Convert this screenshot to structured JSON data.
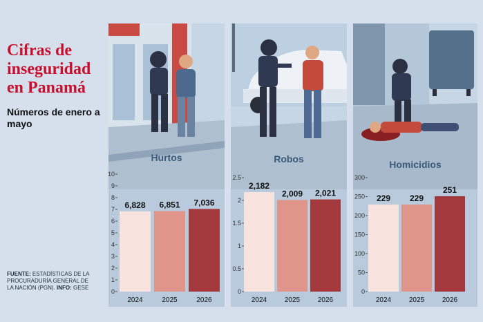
{
  "title": "Cifras de inseguridad en Panamá",
  "subtitle": "Números de enero a mayo",
  "source": {
    "label1": "FUENTE:",
    "text1": "ESTADÍSTICAS DE LA PROCURADURÍA GENERAL DE LA NACIÓN (PGN).",
    "label2": "INFO:",
    "text2": "GESE"
  },
  "colors": {
    "2024": "#f8e3de",
    "2025": "#e0958a",
    "2026": "#a3393c"
  },
  "chart_data": [
    {
      "type": "bar",
      "category": "Hurtos",
      "categories": [
        "2024",
        "2025",
        "2026"
      ],
      "values": [
        6828,
        6851,
        7036
      ],
      "labels": [
        "6,828",
        "6,851",
        "7,036"
      ],
      "ylim": [
        0,
        10000
      ],
      "yticks": [
        0,
        1,
        2,
        3,
        4,
        5,
        6,
        7,
        8,
        9,
        10
      ],
      "ytick_scale": 1000
    },
    {
      "type": "bar",
      "category": "Robos",
      "categories": [
        "2024",
        "2025",
        "2026"
      ],
      "values": [
        2182,
        2009,
        2021
      ],
      "labels": [
        "2,182",
        "2,009",
        "2,021"
      ],
      "ylim": [
        0,
        2500
      ],
      "yticks": [
        "0",
        "0.5",
        "1",
        "1.5",
        "2",
        "2.5"
      ],
      "ytick_scale": 1000
    },
    {
      "type": "bar",
      "category": "Homicidios",
      "categories": [
        "2024",
        "2025",
        "2026"
      ],
      "values": [
        229,
        229,
        251
      ],
      "labels": [
        "229",
        "229",
        "251"
      ],
      "ylim": [
        0,
        300
      ],
      "yticks": [
        0,
        50,
        100,
        150,
        200,
        250,
        300
      ],
      "ytick_scale": 1
    }
  ]
}
